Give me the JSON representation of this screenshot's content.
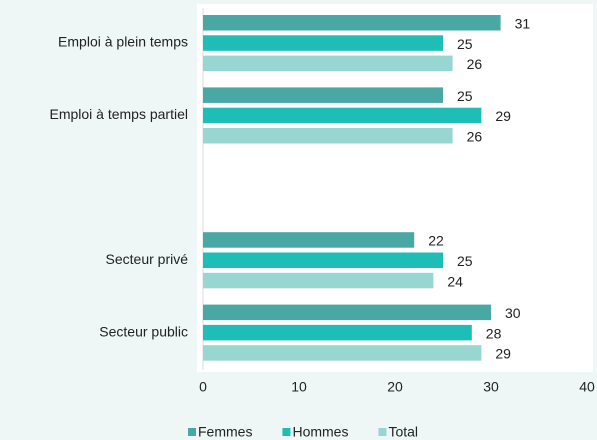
{
  "chart_data": {
    "type": "bar",
    "orientation": "horizontal",
    "categories": [
      "Emploi à plein temps",
      "Emploi à temps partiel",
      null,
      "Secteur privé",
      "Secteur public"
    ],
    "series": [
      {
        "name": "Femmes",
        "color": "#4aa8a4",
        "values": [
          31,
          25,
          null,
          22,
          30
        ]
      },
      {
        "name": "Hommes",
        "color": "#1ebdb5",
        "values": [
          25,
          29,
          null,
          25,
          28
        ]
      },
      {
        "name": "Total",
        "color": "#98d6d2",
        "values": [
          26,
          26,
          null,
          24,
          29
        ]
      }
    ],
    "xlim": [
      0,
      40
    ],
    "xticks": [
      0,
      10,
      20,
      30,
      40
    ],
    "legend": "bottom"
  }
}
